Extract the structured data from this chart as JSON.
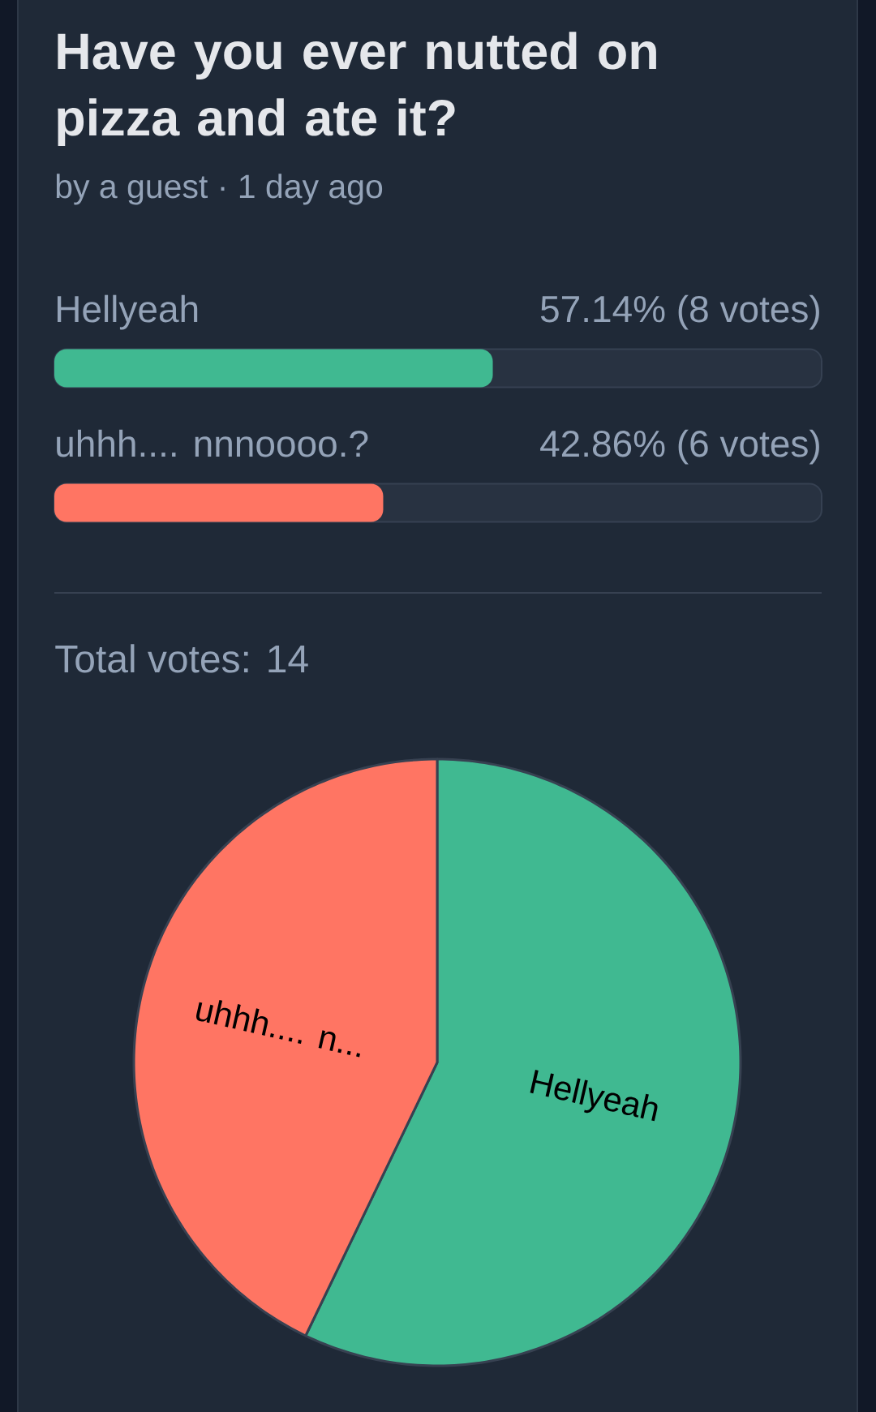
{
  "chart_data": [
    {
      "type": "bar",
      "orientation": "horizontal",
      "title": "Have you ever nutted on pizza and ate it?",
      "subtitle": "by a guest · 1 day ago",
      "categories": [
        "Hellyeah",
        "uhhh.... nnnoooo.?"
      ],
      "values": [
        57.14,
        42.86
      ],
      "colors": [
        "#40b991",
        "#ff7563"
      ],
      "value_labels": [
        "57.14% (8 votes)",
        "42.86% (6 votes)"
      ],
      "xlim": [
        0,
        100
      ],
      "tick_labels": "y",
      "annotations": [
        "Total votes: 14"
      ]
    },
    {
      "type": "pie",
      "categories": [
        "Hellyeah",
        "uhhh.... n..."
      ],
      "values": [
        57.14,
        42.86
      ],
      "colors": [
        "#40b991",
        "#ff7563"
      ]
    }
  ]
}
